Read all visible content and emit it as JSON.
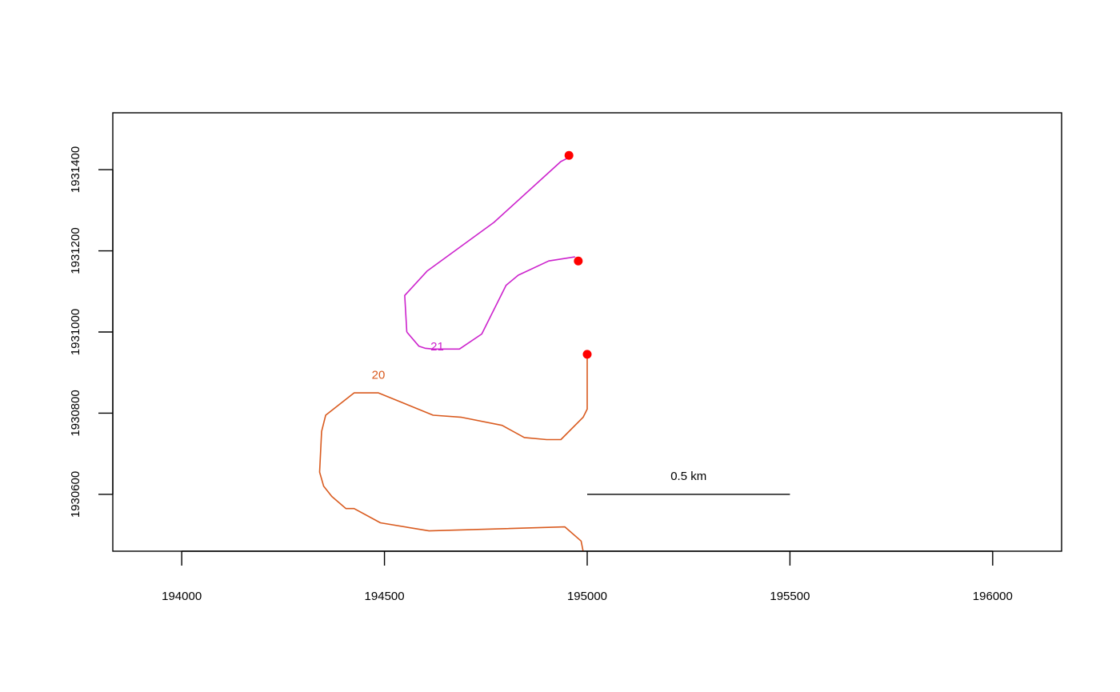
{
  "chart_data": {
    "type": "line",
    "title": "",
    "xlabel": "",
    "ylabel": "",
    "xlim": [
      193830,
      196170
    ],
    "ylim": [
      1930460,
      1931540
    ],
    "x_ticks": [
      {
        "value": 194000,
        "label": "194000"
      },
      {
        "value": 194500,
        "label": "194500"
      },
      {
        "value": 195000,
        "label": "195000"
      },
      {
        "value": 195500,
        "label": "195500"
      },
      {
        "value": 196000,
        "label": "196000"
      }
    ],
    "y_ticks": [
      {
        "value": 1930600,
        "label": "1930600"
      },
      {
        "value": 1930800,
        "label": "1930800"
      },
      {
        "value": 1931000,
        "label": "1931000"
      },
      {
        "value": 1931200,
        "label": "1931200"
      },
      {
        "value": 1931400,
        "label": "1931400"
      }
    ],
    "grid": false,
    "series": [
      {
        "id": "line-21-outer",
        "color": "#cc22cc",
        "x": [
          194955,
          194935,
          194770,
          194605,
          194550,
          194555
        ],
        "y": [
          1931430,
          1931420,
          1931270,
          1931150,
          1931090,
          1931000
        ]
      },
      {
        "id": "line-21-inner",
        "color": "#cc22cc",
        "x": [
          194555,
          194585,
          194600,
          194620,
          194685,
          194740,
          194800,
          194830,
          194905,
          194970
        ],
        "y": [
          1931000,
          1930965,
          1930960,
          1930958,
          1930958,
          1930995,
          1931115,
          1931140,
          1931175,
          1931185
        ]
      },
      {
        "id": "line-20",
        "color": "#d95a1e",
        "x": [
          195000,
          195000,
          194990,
          194935,
          194900,
          194845,
          194790,
          194690,
          194620,
          194485,
          194425,
          194355,
          194345,
          194340,
          194350,
          194370,
          194405,
          194425,
          194490,
          194610,
          194945,
          194985,
          194990
        ],
        "y": [
          1930940,
          1930810,
          1930790,
          1930735,
          1930735,
          1930740,
          1930770,
          1930790,
          1930795,
          1930850,
          1930850,
          1930795,
          1930755,
          1930655,
          1930620,
          1930595,
          1930565,
          1930565,
          1930530,
          1930510,
          1930520,
          1930485,
          1930460
        ]
      }
    ],
    "end_points": [
      {
        "x": 194955,
        "y": 1931435,
        "color": "#ff0000"
      },
      {
        "x": 194978,
        "y": 1931175,
        "color": "#ff0000"
      },
      {
        "x": 195000,
        "y": 1930945,
        "color": "#ff0000"
      }
    ],
    "annotations": [
      {
        "text": "21",
        "x": 194630,
        "y": 1930955,
        "color": "#cc22cc"
      },
      {
        "text": "20",
        "x": 194485,
        "y": 1930885,
        "color": "#d95a1e"
      }
    ],
    "scale_bar": {
      "label": "0.5 km",
      "x0": 195000,
      "x1": 195500,
      "y": 1930600
    }
  }
}
